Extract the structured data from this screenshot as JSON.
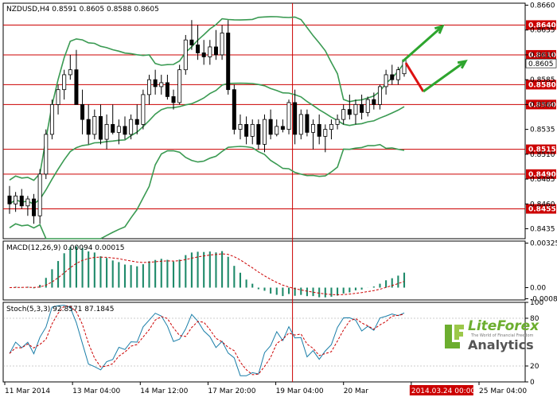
{
  "colors": {
    "bullish": "#ffffff",
    "bearish": "#000000",
    "bands": "#3a9a52",
    "levels": "#cc0000",
    "level_label_bg": "#cc0000",
    "macd_hist": "#1f8a6a",
    "macd_signal": "#cc0000",
    "stoch_main": "#1a7ea8",
    "stoch_signal": "#cc0000",
    "arrow_up": "#2ea52e",
    "arrow_down": "#dd1111",
    "time_marker": "#cc0000",
    "logo": "#6cae2f"
  },
  "chart_data": [
    {
      "type": "candlestick",
      "title": "NZDUSD,H4  0.8591 0.8605 0.8588 0.8605",
      "symbol": "NZDUSD",
      "timeframe": "H4",
      "ohlc_readout": "0.8591 0.8605 0.8588 0.8605",
      "current_price_label": "0.8605",
      "ylim": [
        0.8425,
        0.8662
      ],
      "yticks": [
        "0.8660",
        "0.8635",
        "0.8610",
        "0.8585",
        "0.8560",
        "0.8535",
        "0.8510",
        "0.8485",
        "0.8460",
        "0.8435"
      ],
      "levels": [
        {
          "value": 0.864,
          "label": "0.8640"
        },
        {
          "value": 0.861,
          "label": "0.8610"
        },
        {
          "value": 0.858,
          "label": "0.8580"
        },
        {
          "value": 0.856,
          "label": "0.8560"
        },
        {
          "value": 0.8515,
          "label": "0.8515"
        },
        {
          "value": 0.849,
          "label": "0.8490"
        },
        {
          "value": 0.8455,
          "label": "0.8455"
        }
      ],
      "candles": [
        [
          0.8468,
          0.8478,
          0.845,
          0.846
        ],
        [
          0.846,
          0.8472,
          0.8452,
          0.8468
        ],
        [
          0.8468,
          0.8475,
          0.8455,
          0.8458
        ],
        [
          0.8458,
          0.8468,
          0.8448,
          0.8465
        ],
        [
          0.8465,
          0.847,
          0.844,
          0.8448
        ],
        [
          0.8448,
          0.8495,
          0.844,
          0.849
        ],
        [
          0.849,
          0.8535,
          0.8485,
          0.853
        ],
        [
          0.853,
          0.8565,
          0.8525,
          0.856
        ],
        [
          0.856,
          0.858,
          0.855,
          0.8575
        ],
        [
          0.8575,
          0.8595,
          0.8565,
          0.859
        ],
        [
          0.859,
          0.861,
          0.8585,
          0.8595
        ],
        [
          0.8595,
          0.8615,
          0.856,
          0.856
        ],
        [
          0.856,
          0.8575,
          0.853,
          0.8545
        ],
        [
          0.8545,
          0.856,
          0.852,
          0.853
        ],
        [
          0.853,
          0.8555,
          0.8525,
          0.8548
        ],
        [
          0.8548,
          0.856,
          0.852,
          0.8525
        ],
        [
          0.8525,
          0.855,
          0.8515,
          0.854
        ],
        [
          0.854,
          0.856,
          0.853,
          0.8532
        ],
        [
          0.8532,
          0.8545,
          0.852,
          0.8538
        ],
        [
          0.8538,
          0.8548,
          0.8525,
          0.853
        ],
        [
          0.853,
          0.855,
          0.8525,
          0.8545
        ],
        [
          0.8545,
          0.856,
          0.853,
          0.854
        ],
        [
          0.854,
          0.8575,
          0.8535,
          0.857
        ],
        [
          0.857,
          0.859,
          0.856,
          0.8585
        ],
        [
          0.8585,
          0.8595,
          0.857,
          0.8578
        ],
        [
          0.8578,
          0.859,
          0.857,
          0.8582
        ],
        [
          0.8582,
          0.859,
          0.8565,
          0.8568
        ],
        [
          0.8568,
          0.8575,
          0.8555,
          0.8562
        ],
        [
          0.8562,
          0.86,
          0.856,
          0.8595
        ],
        [
          0.8595,
          0.863,
          0.859,
          0.8625
        ],
        [
          0.8625,
          0.8645,
          0.8615,
          0.862
        ],
        [
          0.862,
          0.864,
          0.8605,
          0.8612
        ],
        [
          0.8612,
          0.8625,
          0.86,
          0.8608
        ],
        [
          0.8608,
          0.8625,
          0.86,
          0.8618
        ],
        [
          0.8618,
          0.8635,
          0.8605,
          0.861
        ],
        [
          0.861,
          0.864,
          0.8605,
          0.8632
        ],
        [
          0.8632,
          0.8645,
          0.857,
          0.8575
        ],
        [
          0.8575,
          0.858,
          0.853,
          0.8535
        ],
        [
          0.8535,
          0.855,
          0.8525,
          0.854
        ],
        [
          0.854,
          0.8548,
          0.852,
          0.8528
        ],
        [
          0.8528,
          0.8545,
          0.852,
          0.854
        ],
        [
          0.854,
          0.8545,
          0.8515,
          0.852
        ],
        [
          0.852,
          0.855,
          0.8512,
          0.8545
        ],
        [
          0.8545,
          0.8555,
          0.8525,
          0.853
        ],
        [
          0.853,
          0.8545,
          0.8528,
          0.8538
        ],
        [
          0.8538,
          0.8545,
          0.8532,
          0.8535
        ],
        [
          0.8535,
          0.8565,
          0.853,
          0.8562
        ],
        [
          0.8562,
          0.8575,
          0.852,
          0.853
        ],
        [
          0.853,
          0.8555,
          0.8525,
          0.855
        ],
        [
          0.855,
          0.8555,
          0.8528,
          0.8532
        ],
        [
          0.8532,
          0.8545,
          0.8515,
          0.854
        ],
        [
          0.854,
          0.855,
          0.852,
          0.8528
        ],
        [
          0.8528,
          0.854,
          0.8512,
          0.8535
        ],
        [
          0.8535,
          0.8545,
          0.8525,
          0.854
        ],
        [
          0.854,
          0.855,
          0.8535,
          0.8545
        ],
        [
          0.8545,
          0.856,
          0.854,
          0.8555
        ],
        [
          0.8555,
          0.857,
          0.8545,
          0.855
        ],
        [
          0.855,
          0.8565,
          0.854,
          0.856
        ],
        [
          0.856,
          0.857,
          0.8545,
          0.8552
        ],
        [
          0.8552,
          0.8568,
          0.8548,
          0.8565
        ],
        [
          0.8565,
          0.8572,
          0.8555,
          0.856
        ],
        [
          0.856,
          0.858,
          0.8555,
          0.8578
        ],
        [
          0.8578,
          0.8595,
          0.857,
          0.859
        ],
        [
          0.859,
          0.86,
          0.858,
          0.8585
        ],
        [
          0.8585,
          0.8598,
          0.858,
          0.8595
        ],
        [
          0.8591,
          0.8605,
          0.8588,
          0.8605
        ]
      ],
      "time_labels": [
        "11 Mar 2014",
        "13 Mar 04:00",
        "14 Mar 12:00",
        "17 Mar 20:00",
        "19 Mar 04:00",
        "20 Mar",
        "2014.03.24 00:00",
        "25 Mar 04:00"
      ],
      "highlighted_time": "2014.03.24 00:00"
    },
    {
      "type": "bar",
      "title": "MACD(12,26,9) 0.00094 0.00015",
      "yticks": [
        "0.00325",
        "0.00",
        "-0.00081"
      ],
      "ylim": [
        -0.0009,
        0.0034
      ]
    },
    {
      "type": "line",
      "title": "Stoch(5,3,3) 92.8571 87.1845",
      "yticks": [
        "100",
        "80",
        "20",
        "0"
      ],
      "ylim": [
        0,
        100
      ]
    }
  ],
  "logo": {
    "brand": "LiteForex",
    "tagline": "The World of Financial Freedom",
    "sub": "Analytics"
  }
}
